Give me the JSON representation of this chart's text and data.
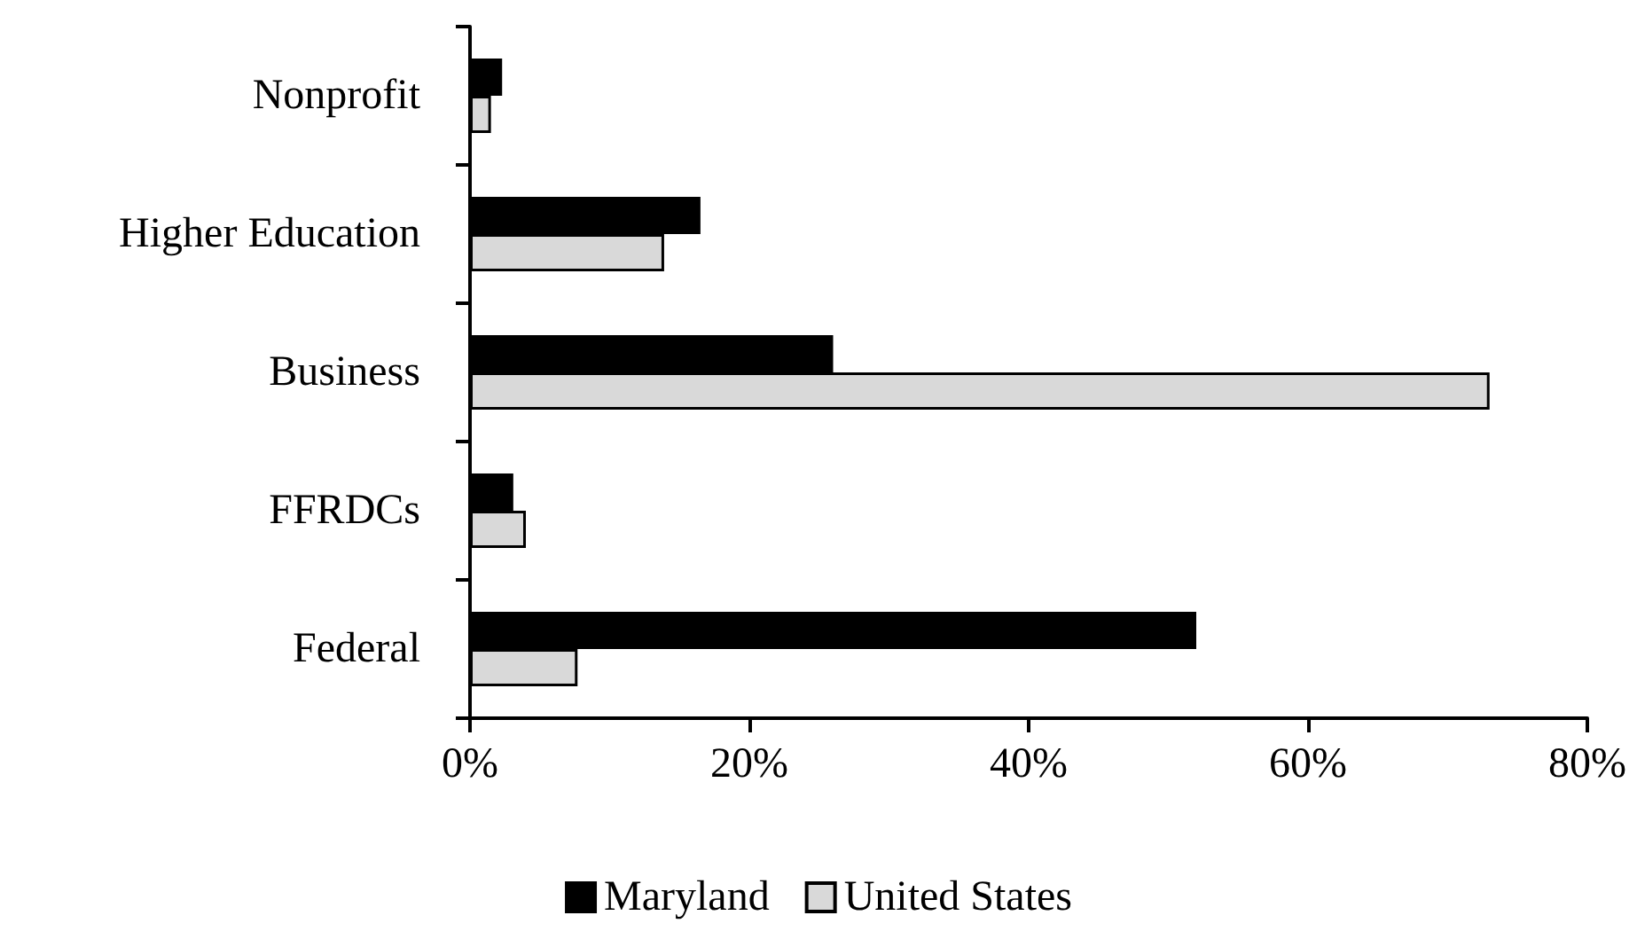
{
  "chart_data": {
    "type": "bar",
    "orientation": "horizontal",
    "categories": [
      "Nonprofit",
      "Higher Education",
      "Business",
      "FFRDCs",
      "Federal"
    ],
    "series": [
      {
        "name": "Maryland",
        "color": "#000000",
        "values": [
          2.3,
          16.5,
          26.0,
          3.1,
          52.0
        ]
      },
      {
        "name": "United States",
        "color": "#d9d9d9",
        "values": [
          1.5,
          13.9,
          73.0,
          4.0,
          7.7
        ]
      }
    ],
    "xlim": [
      0,
      80
    ],
    "xticks": [
      {
        "value": 0,
        "label": "0%"
      },
      {
        "value": 20,
        "label": "20%"
      },
      {
        "value": 40,
        "label": "40%"
      },
      {
        "value": 60,
        "label": "60%"
      },
      {
        "value": 80,
        "label": "80%"
      }
    ],
    "grid": false,
    "legend": "bottom"
  }
}
